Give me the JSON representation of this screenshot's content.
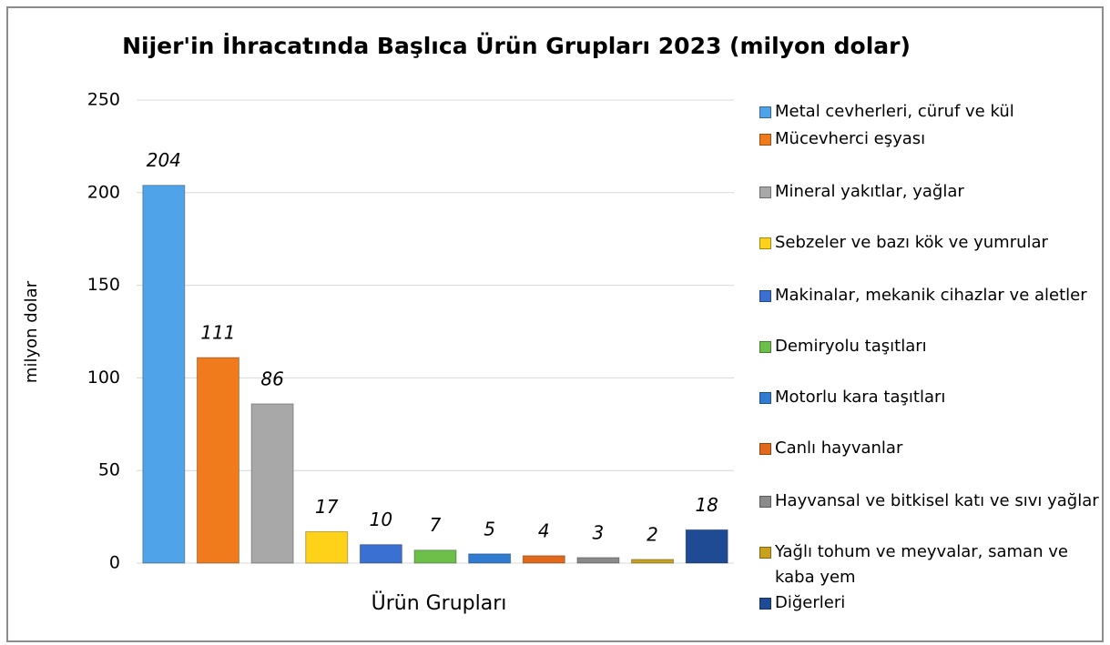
{
  "chart_data": {
    "type": "bar",
    "title": "Nijer'in İhracatında Başlıca Ürün Grupları 2023 (milyon dolar)",
    "x_label": "Ürün Grupları",
    "y_label": "milyon dolar",
    "categories": [
      "Metal cevherleri, cüruf ve kül",
      "Mücevherci eşyası",
      "Mineral yakıtlar, yağlar",
      "Sebzeler ve bazı kök ve yumrular",
      "Makinalar, mekanik cihazlar ve aletler",
      "Demiryolu taşıtları",
      "Motorlu kara taşıtları",
      "Canlı hayvanlar",
      "Hayvansal ve bitkisel katı ve sıvı yağlar",
      "Yağlı tohum ve meyvalar, saman ve kaba yem",
      "Diğerleri"
    ],
    "values": [
      204,
      111,
      86,
      17,
      10,
      7,
      5,
      4,
      3,
      2,
      18
    ],
    "colors": [
      "#4fa3e8",
      "#f07b1d",
      "#a8a8a8",
      "#ffd21a",
      "#3a70d2",
      "#6cc04a",
      "#2f7cd2",
      "#e2691a",
      "#8a8a8a",
      "#c9a11c",
      "#1f4b95"
    ],
    "ylim": [
      0,
      250
    ],
    "yticks": [
      0,
      50,
      100,
      150,
      200,
      250
    ],
    "grid": true,
    "legend": "right"
  }
}
